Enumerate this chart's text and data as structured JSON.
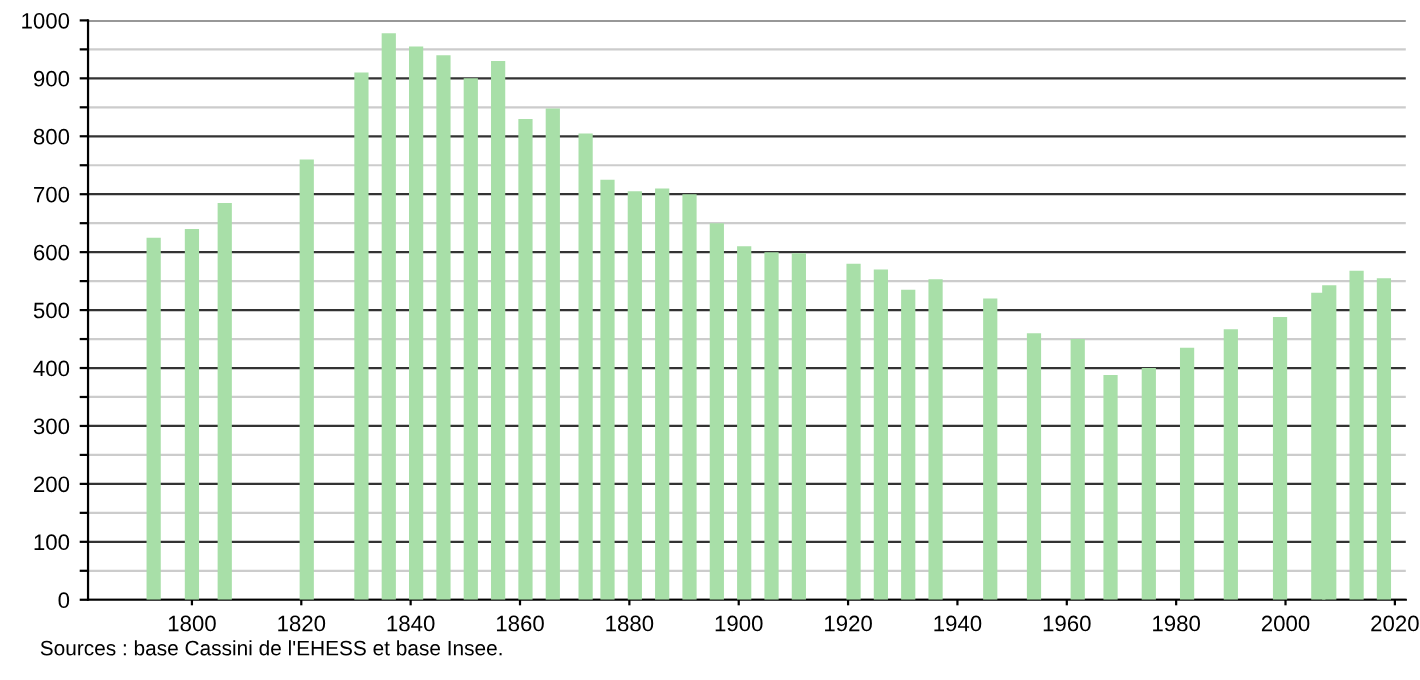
{
  "chart_data": {
    "type": "bar",
    "x": [
      1793,
      1800,
      1806,
      1821,
      1831,
      1836,
      1841,
      1846,
      1851,
      1856,
      1861,
      1866,
      1872,
      1876,
      1881,
      1886,
      1891,
      1896,
      1901,
      1906,
      1911,
      1921,
      1926,
      1931,
      1936,
      1946,
      1954,
      1962,
      1968,
      1975,
      1982,
      1990,
      1999,
      2006,
      2008,
      2013,
      2018
    ],
    "values": [
      625,
      640,
      685,
      760,
      910,
      978,
      955,
      940,
      900,
      930,
      830,
      848,
      805,
      725,
      705,
      710,
      700,
      650,
      610,
      600,
      598,
      580,
      570,
      535,
      553,
      520,
      460,
      450,
      388,
      400,
      435,
      467,
      488,
      530,
      543,
      568,
      555
    ],
    "color": "#a8dfa8",
    "xlim": [
      1781,
      2022
    ],
    "xticks": [
      1800,
      1820,
      1840,
      1860,
      1880,
      1900,
      1920,
      1940,
      1960,
      1980,
      2000,
      2020
    ],
    "ylim": [
      0,
      1000
    ],
    "yticks": [
      0,
      {
        "value": 50,
        "label": null
      },
      100,
      {
        "value": 150,
        "label": null
      },
      200,
      {
        "value": 250,
        "label": null
      },
      300,
      {
        "value": 350,
        "label": null
      },
      400,
      {
        "value": 450,
        "label": null
      },
      500,
      {
        "value": 550,
        "label": null
      },
      600,
      {
        "value": 650,
        "label": null
      },
      700,
      {
        "value": 750,
        "label": null
      },
      800,
      {
        "value": 850,
        "label": null
      },
      900,
      {
        "value": 950,
        "label": null
      },
      1000
    ],
    "grid": "y",
    "annotations": [
      "Sources : base Cassini de l'EHESS et base Insee."
    ]
  }
}
